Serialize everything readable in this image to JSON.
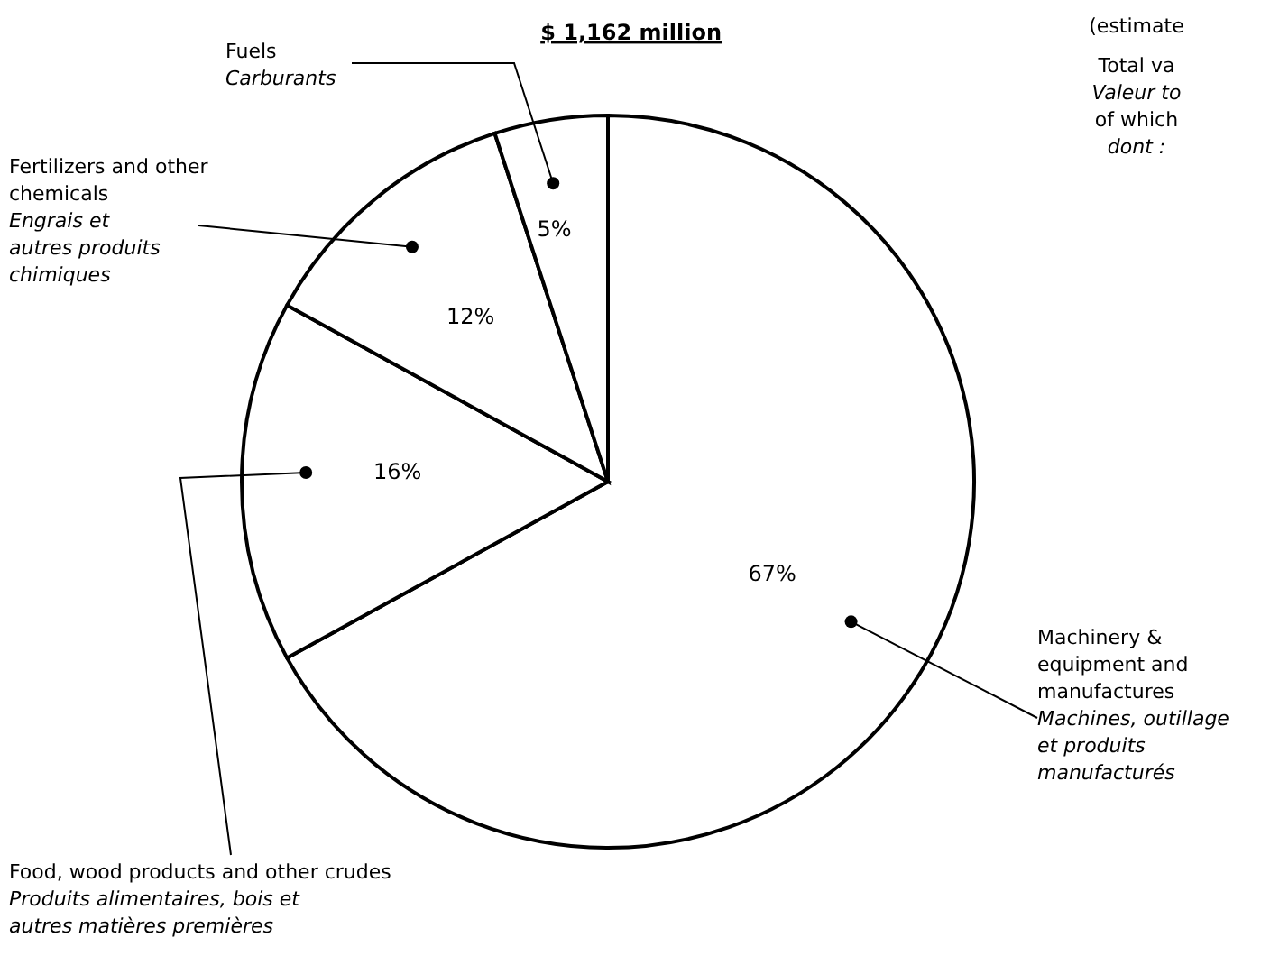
{
  "chart_data": {
    "type": "pie",
    "title": "$ 1,162 million",
    "categories": [
      "Machinery &\nequipment and\nmanufactures\n\nMachines, outillage\net produits\nmanufacturés",
      "Food, wood products and other crudes\n\nProduits alimentaires, bois et\nautres matières premières",
      "Fertilizers and other\nchemicals\n\nEngrais et\nautres produits\nchimiques",
      "Fuels\n\nCarburants"
    ],
    "values": [
      67,
      16,
      12,
      5
    ],
    "value_labels": [
      "67%",
      "16%",
      "12%",
      "5%"
    ],
    "colors": [
      "#ffffff",
      "#ffffff",
      "#ffffff",
      "#ffffff"
    ],
    "annotations": [
      "(estimate",
      "Total va",
      "Valeur to",
      "of which",
      "dont :"
    ],
    "legend": false
  }
}
